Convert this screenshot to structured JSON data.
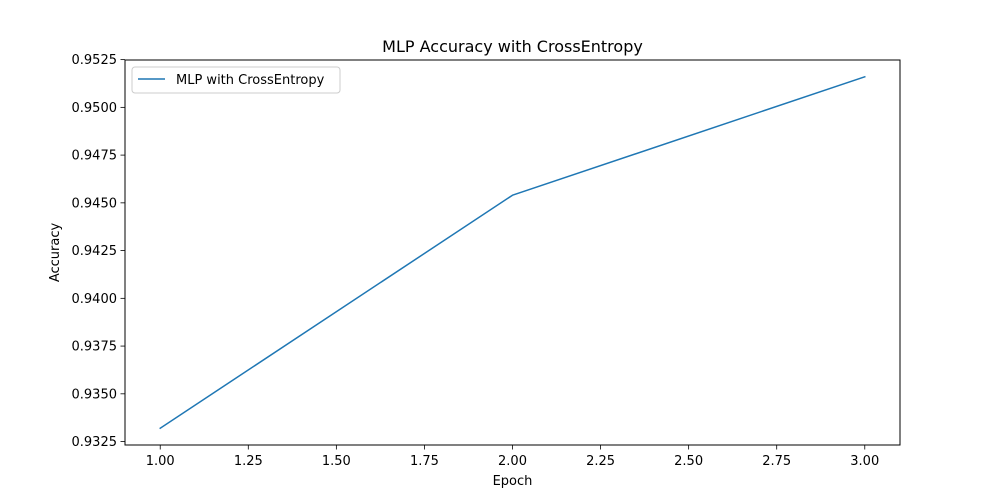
{
  "chart_data": {
    "type": "line",
    "title": "MLP Accuracy with CrossEntropy",
    "xlabel": "Epoch",
    "ylabel": "Accuracy",
    "x": [
      1.0,
      2.0,
      3.0
    ],
    "series": [
      {
        "name": "MLP with CrossEntropy",
        "values": [
          0.9332,
          0.9454,
          0.9516
        ],
        "color": "#1f77b4"
      }
    ],
    "xlim": [
      0.9,
      3.1
    ],
    "ylim": [
      0.93232,
      0.95248
    ],
    "xticks": [
      1.0,
      1.25,
      1.5,
      1.75,
      2.0,
      2.25,
      2.5,
      2.75,
      3.0
    ],
    "xtick_labels": [
      "1.00",
      "1.25",
      "1.50",
      "1.75",
      "2.00",
      "2.25",
      "2.50",
      "2.75",
      "3.00"
    ],
    "yticks": [
      0.9325,
      0.935,
      0.9375,
      0.94,
      0.9425,
      0.945,
      0.9475,
      0.95,
      0.9525
    ],
    "ytick_labels": [
      "0.9325",
      "0.9350",
      "0.9375",
      "0.9400",
      "0.9425",
      "0.9450",
      "0.9475",
      "0.9500",
      "0.9525"
    ],
    "grid": false,
    "legend_position": "top-left"
  }
}
